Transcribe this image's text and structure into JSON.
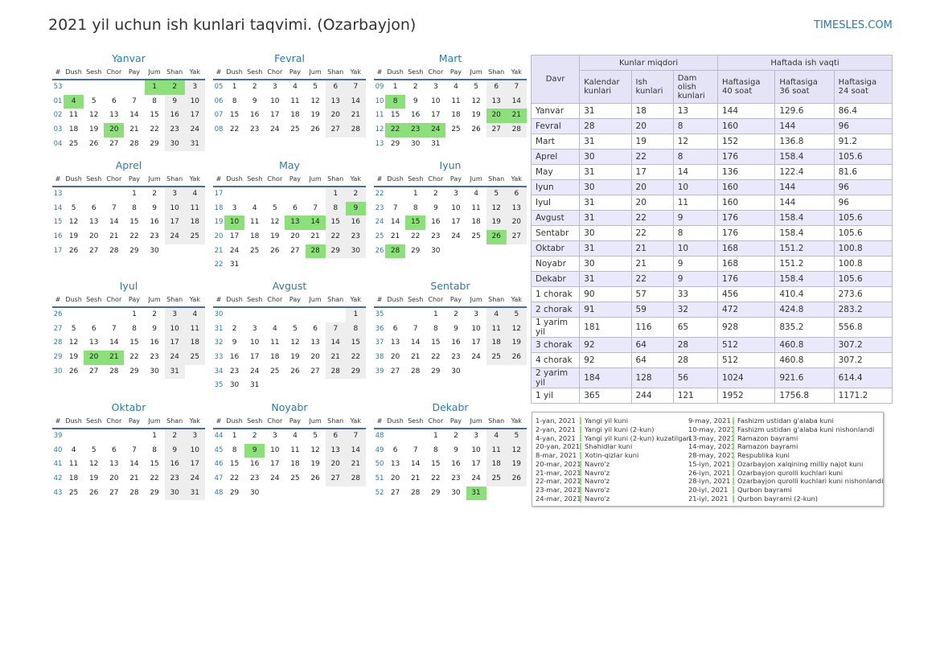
{
  "title": "2021 yil uchun ish kunlari taqvimi. (Ozarbayjon)",
  "brand": "TIMESLES.COM",
  "weekday_headers": [
    "#",
    "Dush",
    "Sesh",
    "Chor",
    "Pay",
    "Jum",
    "Shan",
    "Yak"
  ],
  "colors": {
    "holiday": "#8be07a",
    "weekend": "#eeeeee",
    "accent": "#2a7ab0"
  },
  "months": [
    {
      "name": "Yanvar",
      "weeks": [
        {
          "w": "53",
          "d": [
            "",
            "",
            "",
            "",
            "1",
            "2",
            "3"
          ]
        },
        {
          "w": "01",
          "d": [
            "4",
            "5",
            "6",
            "7",
            "8",
            "9",
            "10"
          ]
        },
        {
          "w": "02",
          "d": [
            "11",
            "12",
            "13",
            "14",
            "15",
            "16",
            "17"
          ]
        },
        {
          "w": "03",
          "d": [
            "18",
            "19",
            "20",
            "21",
            "22",
            "23",
            "24"
          ]
        },
        {
          "w": "04",
          "d": [
            "25",
            "26",
            "27",
            "28",
            "29",
            "30",
            "31"
          ]
        }
      ],
      "holidays": [
        1,
        2,
        4,
        20
      ]
    },
    {
      "name": "Fevral",
      "weeks": [
        {
          "w": "05",
          "d": [
            "1",
            "2",
            "3",
            "4",
            "5",
            "6",
            "7"
          ]
        },
        {
          "w": "06",
          "d": [
            "8",
            "9",
            "10",
            "11",
            "12",
            "13",
            "14"
          ]
        },
        {
          "w": "07",
          "d": [
            "15",
            "16",
            "17",
            "18",
            "19",
            "20",
            "21"
          ]
        },
        {
          "w": "08",
          "d": [
            "22",
            "23",
            "24",
            "25",
            "26",
            "27",
            "28"
          ]
        }
      ],
      "holidays": []
    },
    {
      "name": "Mart",
      "weeks": [
        {
          "w": "09",
          "d": [
            "1",
            "2",
            "3",
            "4",
            "5",
            "6",
            "7"
          ]
        },
        {
          "w": "10",
          "d": [
            "8",
            "9",
            "10",
            "11",
            "12",
            "13",
            "14"
          ]
        },
        {
          "w": "11",
          "d": [
            "15",
            "16",
            "17",
            "18",
            "19",
            "20",
            "21"
          ]
        },
        {
          "w": "12",
          "d": [
            "22",
            "23",
            "24",
            "25",
            "26",
            "27",
            "28"
          ]
        },
        {
          "w": "13",
          "d": [
            "29",
            "30",
            "31",
            "",
            "",
            "",
            ""
          ]
        }
      ],
      "holidays": [
        8,
        20,
        21,
        22,
        23,
        24
      ]
    },
    {
      "name": "Aprel",
      "weeks": [
        {
          "w": "13",
          "d": [
            "",
            "",
            "",
            "1",
            "2",
            "3",
            "4"
          ]
        },
        {
          "w": "14",
          "d": [
            "5",
            "6",
            "7",
            "8",
            "9",
            "10",
            "11"
          ]
        },
        {
          "w": "15",
          "d": [
            "12",
            "13",
            "14",
            "15",
            "16",
            "17",
            "18"
          ]
        },
        {
          "w": "16",
          "d": [
            "19",
            "20",
            "21",
            "22",
            "23",
            "24",
            "25"
          ]
        },
        {
          "w": "17",
          "d": [
            "26",
            "27",
            "28",
            "29",
            "30",
            "",
            ""
          ]
        }
      ],
      "holidays": []
    },
    {
      "name": "May",
      "weeks": [
        {
          "w": "17",
          "d": [
            "",
            "",
            "",
            "",
            "",
            "1",
            "2"
          ]
        },
        {
          "w": "18",
          "d": [
            "3",
            "4",
            "5",
            "6",
            "7",
            "8",
            "9"
          ]
        },
        {
          "w": "19",
          "d": [
            "10",
            "11",
            "12",
            "13",
            "14",
            "15",
            "16"
          ]
        },
        {
          "w": "20",
          "d": [
            "17",
            "18",
            "19",
            "20",
            "21",
            "22",
            "23"
          ]
        },
        {
          "w": "21",
          "d": [
            "24",
            "25",
            "26",
            "27",
            "28",
            "29",
            "30"
          ]
        },
        {
          "w": "22",
          "d": [
            "31",
            "",
            "",
            "",
            "",
            "",
            ""
          ]
        }
      ],
      "holidays": [
        9,
        10,
        13,
        14,
        28
      ]
    },
    {
      "name": "Iyun",
      "weeks": [
        {
          "w": "22",
          "d": [
            "",
            "1",
            "2",
            "3",
            "4",
            "5",
            "6"
          ]
        },
        {
          "w": "23",
          "d": [
            "7",
            "8",
            "9",
            "10",
            "11",
            "12",
            "13"
          ]
        },
        {
          "w": "24",
          "d": [
            "14",
            "15",
            "16",
            "17",
            "18",
            "19",
            "20"
          ]
        },
        {
          "w": "25",
          "d": [
            "21",
            "22",
            "23",
            "24",
            "25",
            "26",
            "27"
          ]
        },
        {
          "w": "26",
          "d": [
            "28",
            "29",
            "30",
            "",
            "",
            "",
            ""
          ]
        }
      ],
      "holidays": [
        15,
        26,
        28
      ]
    },
    {
      "name": "Iyul",
      "weeks": [
        {
          "w": "26",
          "d": [
            "",
            "",
            "",
            "1",
            "2",
            "3",
            "4"
          ]
        },
        {
          "w": "27",
          "d": [
            "5",
            "6",
            "7",
            "8",
            "9",
            "10",
            "11"
          ]
        },
        {
          "w": "28",
          "d": [
            "12",
            "13",
            "14",
            "15",
            "16",
            "17",
            "18"
          ]
        },
        {
          "w": "29",
          "d": [
            "19",
            "20",
            "21",
            "22",
            "23",
            "24",
            "25"
          ]
        },
        {
          "w": "30",
          "d": [
            "26",
            "27",
            "28",
            "29",
            "30",
            "31",
            ""
          ]
        }
      ],
      "holidays": [
        20,
        21
      ]
    },
    {
      "name": "Avgust",
      "weeks": [
        {
          "w": "30",
          "d": [
            "",
            "",
            "",
            "",
            "",
            "",
            "1"
          ]
        },
        {
          "w": "31",
          "d": [
            "2",
            "3",
            "4",
            "5",
            "6",
            "7",
            "8"
          ]
        },
        {
          "w": "32",
          "d": [
            "9",
            "10",
            "11",
            "12",
            "13",
            "14",
            "15"
          ]
        },
        {
          "w": "33",
          "d": [
            "16",
            "17",
            "18",
            "19",
            "20",
            "21",
            "22"
          ]
        },
        {
          "w": "34",
          "d": [
            "23",
            "24",
            "25",
            "26",
            "27",
            "28",
            "29"
          ]
        },
        {
          "w": "35",
          "d": [
            "30",
            "31",
            "",
            "",
            "",
            "",
            ""
          ]
        }
      ],
      "holidays": []
    },
    {
      "name": "Sentabr",
      "weeks": [
        {
          "w": "35",
          "d": [
            "",
            "",
            "1",
            "2",
            "3",
            "4",
            "5"
          ]
        },
        {
          "w": "36",
          "d": [
            "6",
            "7",
            "8",
            "9",
            "10",
            "11",
            "12"
          ]
        },
        {
          "w": "37",
          "d": [
            "13",
            "14",
            "15",
            "16",
            "17",
            "18",
            "19"
          ]
        },
        {
          "w": "38",
          "d": [
            "20",
            "21",
            "22",
            "23",
            "24",
            "25",
            "26"
          ]
        },
        {
          "w": "39",
          "d": [
            "27",
            "28",
            "29",
            "30",
            "",
            "",
            ""
          ]
        }
      ],
      "holidays": []
    },
    {
      "name": "Oktabr",
      "weeks": [
        {
          "w": "39",
          "d": [
            "",
            "",
            "",
            "",
            "1",
            "2",
            "3"
          ]
        },
        {
          "w": "40",
          "d": [
            "4",
            "5",
            "6",
            "7",
            "8",
            "9",
            "10"
          ]
        },
        {
          "w": "41",
          "d": [
            "11",
            "12",
            "13",
            "14",
            "15",
            "16",
            "17"
          ]
        },
        {
          "w": "42",
          "d": [
            "18",
            "19",
            "20",
            "21",
            "22",
            "23",
            "24"
          ]
        },
        {
          "w": "43",
          "d": [
            "25",
            "26",
            "27",
            "28",
            "29",
            "30",
            "31"
          ]
        }
      ],
      "holidays": []
    },
    {
      "name": "Noyabr",
      "weeks": [
        {
          "w": "44",
          "d": [
            "1",
            "2",
            "3",
            "4",
            "5",
            "6",
            "7"
          ]
        },
        {
          "w": "45",
          "d": [
            "8",
            "9",
            "10",
            "11",
            "12",
            "13",
            "14"
          ]
        },
        {
          "w": "46",
          "d": [
            "15",
            "16",
            "17",
            "18",
            "19",
            "20",
            "21"
          ]
        },
        {
          "w": "47",
          "d": [
            "22",
            "23",
            "24",
            "25",
            "26",
            "27",
            "28"
          ]
        },
        {
          "w": "48",
          "d": [
            "29",
            "30",
            "",
            "",
            "",
            "",
            ""
          ]
        }
      ],
      "holidays": [
        9
      ]
    },
    {
      "name": "Dekabr",
      "weeks": [
        {
          "w": "48",
          "d": [
            "",
            "",
            "1",
            "2",
            "3",
            "4",
            "5"
          ]
        },
        {
          "w": "49",
          "d": [
            "6",
            "7",
            "8",
            "9",
            "10",
            "11",
            "12"
          ]
        },
        {
          "w": "50",
          "d": [
            "13",
            "14",
            "15",
            "16",
            "17",
            "18",
            "19"
          ]
        },
        {
          "w": "51",
          "d": [
            "20",
            "21",
            "22",
            "23",
            "24",
            "25",
            "26"
          ]
        },
        {
          "w": "52",
          "d": [
            "27",
            "28",
            "29",
            "30",
            "31",
            "",
            ""
          ]
        }
      ],
      "holidays": [
        31
      ]
    }
  ],
  "table": {
    "period_header": "Davr",
    "group1": "Kunlar miqdori",
    "group2": "Haftada ish vaqti",
    "subheaders": [
      "Kalendar kunlari",
      "Ish kunlari",
      "Dam olish kunlari",
      "Haftasiga 40 soat",
      "Haftasiga 36 soat",
      "Haftasiga 24 soat"
    ],
    "rows": [
      [
        "Yanvar",
        "31",
        "18",
        "13",
        "144",
        "129.6",
        "86.4"
      ],
      [
        "Fevral",
        "28",
        "20",
        "8",
        "160",
        "144",
        "96"
      ],
      [
        "Mart",
        "31",
        "19",
        "12",
        "152",
        "136.8",
        "91.2"
      ],
      [
        "Aprel",
        "30",
        "22",
        "8",
        "176",
        "158.4",
        "105.6"
      ],
      [
        "May",
        "31",
        "17",
        "14",
        "136",
        "122.4",
        "81.6"
      ],
      [
        "Iyun",
        "30",
        "20",
        "10",
        "160",
        "144",
        "96"
      ],
      [
        "Iyul",
        "31",
        "20",
        "11",
        "160",
        "144",
        "96"
      ],
      [
        "Avgust",
        "31",
        "22",
        "9",
        "176",
        "158.4",
        "105.6"
      ],
      [
        "Sentabr",
        "30",
        "22",
        "8",
        "176",
        "158.4",
        "105.6"
      ],
      [
        "Oktabr",
        "31",
        "21",
        "10",
        "168",
        "151.2",
        "100.8"
      ],
      [
        "Noyabr",
        "30",
        "21",
        "9",
        "168",
        "151.2",
        "100.8"
      ],
      [
        "Dekabr",
        "31",
        "22",
        "9",
        "176",
        "158.4",
        "105.6"
      ],
      [
        "1 chorak",
        "90",
        "57",
        "33",
        "456",
        "410.4",
        "273.6"
      ],
      [
        "2 chorak",
        "91",
        "59",
        "32",
        "472",
        "424.8",
        "283.2"
      ],
      [
        "1 yarim yil",
        "181",
        "116",
        "65",
        "928",
        "835.2",
        "556.8"
      ],
      [
        "3 chorak",
        "92",
        "64",
        "28",
        "512",
        "460.8",
        "307.2"
      ],
      [
        "4 chorak",
        "92",
        "64",
        "28",
        "512",
        "460.8",
        "307.2"
      ],
      [
        "2 yarim yil",
        "184",
        "128",
        "56",
        "1024",
        "921.6",
        "614.4"
      ],
      [
        "1 yil",
        "365",
        "244",
        "121",
        "1952",
        "1756.8",
        "1171.2"
      ]
    ]
  },
  "holidays_list": {
    "left": [
      {
        "date": "1-yan, 2021",
        "name": "Yangi yil kuni"
      },
      {
        "date": "2-yan, 2021",
        "name": "Yangi yil kuni (2-kun)"
      },
      {
        "date": "4-yan, 2021",
        "name": "Yangi yil kuni (2-kun) kuzatilgan"
      },
      {
        "date": "20-yan, 2021",
        "name": "Shahidlar kuni"
      },
      {
        "date": "8-mar, 2021",
        "name": "Xotin-qizlar kuni"
      },
      {
        "date": "20-mar, 2021",
        "name": "Navro'z"
      },
      {
        "date": "21-mar, 2021",
        "name": "Navro'z"
      },
      {
        "date": "22-mar, 2021",
        "name": "Navro'z"
      },
      {
        "date": "23-mar, 2021",
        "name": "Navro'z"
      },
      {
        "date": "24-mar, 2021",
        "name": "Navro'z"
      }
    ],
    "right": [
      {
        "date": "9-may, 2021",
        "name": "Fashizm ustidan g'alaba kuni"
      },
      {
        "date": "10-may, 2021",
        "name": "Fashizm ustidan g'alaba kuni nishonlandi"
      },
      {
        "date": "13-may, 2021",
        "name": "Ramazon bayrami"
      },
      {
        "date": "14-may, 2021",
        "name": "Ramazon bayrami"
      },
      {
        "date": "28-may, 2021",
        "name": "Respublika kuni"
      },
      {
        "date": "15-iyn, 2021",
        "name": "Ozarbayjon xalqining milliy najot kuni"
      },
      {
        "date": "26-iyn, 2021",
        "name": "Ozarbayjon qurolli kuchlari kuni"
      },
      {
        "date": "28-iyn, 2021",
        "name": "Ozarbayjon qurolli kuchlari kuni nishonlandi"
      },
      {
        "date": "20-iyl, 2021",
        "name": "Qurbon bayrami"
      },
      {
        "date": "21-iyl, 2021",
        "name": "Qurbon bayrami (2-kun)"
      }
    ]
  }
}
